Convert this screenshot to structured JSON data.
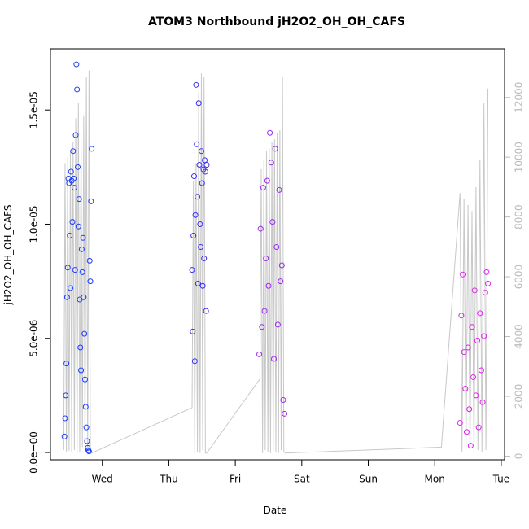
{
  "chart_data": {
    "type": "scatter",
    "title": "ATOM3 Northbound jH2O2_OH_OH_CAFS",
    "x_label": "Date",
    "y_label": "jH2O2_OH_OH_CAFS",
    "xlim": [
      -0.78,
      6.05
    ],
    "xticks": [
      {
        "value": 0,
        "label": "Wed"
      },
      {
        "value": 1,
        "label": "Thu"
      },
      {
        "value": 2,
        "label": "Fri"
      },
      {
        "value": 3,
        "label": "Sat"
      },
      {
        "value": 4,
        "label": "Sun"
      },
      {
        "value": 5,
        "label": "Mon"
      },
      {
        "value": 6,
        "label": "Tue"
      }
    ],
    "ylim": [
      -3.2e-07,
      1.768e-05
    ],
    "yticks": [
      {
        "value": 0,
        "label": "0.0e+00"
      },
      {
        "value": 5e-06,
        "label": "5.0e-06"
      },
      {
        "value": 1e-05,
        "label": "1.0e-05"
      },
      {
        "value": 1.5e-05,
        "label": "1.5e-05"
      }
    ],
    "y2lim": [
      -124,
      13626
    ],
    "y2ticks": [
      0,
      2000,
      4000,
      6000,
      8000,
      10000,
      12000
    ],
    "series": [
      {
        "type": "scatter",
        "color": "#1a3cff",
        "x": [
          -0.57,
          -0.56,
          -0.55,
          -0.54,
          -0.53,
          -0.52,
          -0.51,
          -0.5,
          -0.49,
          -0.48,
          -0.47,
          -0.46,
          -0.45,
          -0.44,
          -0.43,
          -0.42,
          -0.41,
          -0.4,
          -0.39,
          -0.38,
          -0.37,
          -0.36,
          -0.35,
          -0.34,
          -0.33,
          -0.32,
          -0.31,
          -0.3,
          -0.29,
          -0.28,
          -0.27,
          -0.26,
          -0.25,
          -0.24,
          -0.23,
          -0.22,
          -0.21,
          -0.2,
          -0.19,
          -0.18,
          -0.17,
          -0.16
        ],
        "values": [
          7e-07,
          1.5e-06,
          2.5e-06,
          3.9e-06,
          6.8e-06,
          8.1e-06,
          1.2e-05,
          1.18e-05,
          9.5e-06,
          7.2e-06,
          1.23e-05,
          1.19e-05,
          1.01e-05,
          1.32e-05,
          1.2e-05,
          1.16e-05,
          8e-06,
          1.39e-05,
          1.7e-05,
          1.59e-05,
          1.25e-05,
          9.9e-06,
          1.11e-05,
          6.7e-06,
          4.6e-06,
          3.6e-06,
          8.9e-06,
          7.9e-06,
          9.4e-06,
          6.8e-06,
          5.2e-06,
          3.2e-06,
          2e-06,
          1.1e-06,
          5e-07,
          2e-07,
          1e-07,
          5e-08,
          8.4e-06,
          7.5e-06,
          1.1e-05,
          1.33e-05
        ]
      },
      {
        "type": "scatter",
        "color": "#3a2ef5",
        "x": [
          1.35,
          1.36,
          1.37,
          1.38,
          1.39,
          1.4,
          1.41,
          1.42,
          1.43,
          1.44,
          1.45,
          1.46,
          1.47,
          1.48,
          1.49,
          1.5,
          1.51,
          1.52,
          1.53,
          1.54,
          1.55,
          1.56,
          1.57
        ],
        "values": [
          8e-06,
          5.3e-06,
          9.5e-06,
          1.21e-05,
          4e-06,
          1.04e-05,
          1.61e-05,
          1.35e-05,
          1.12e-05,
          7.4e-06,
          1.53e-05,
          1.26e-05,
          1e-05,
          9e-06,
          1.32e-05,
          1.18e-05,
          7.3e-06,
          1.24e-05,
          8.5e-06,
          1.28e-05,
          1.23e-05,
          6.2e-06,
          1.26e-05
        ]
      },
      {
        "type": "scatter",
        "color": "#9a2af0",
        "x": [
          2.36,
          2.38,
          2.4,
          2.42,
          2.44,
          2.46,
          2.48,
          2.5,
          2.52,
          2.54,
          2.56,
          2.58,
          2.6,
          2.62,
          2.64,
          2.66,
          2.68,
          2.7,
          2.72,
          2.74
        ],
        "values": [
          4.3e-06,
          9.8e-06,
          5.5e-06,
          1.16e-05,
          6.2e-06,
          8.5e-06,
          1.19e-05,
          7.3e-06,
          1.4e-05,
          1.27e-05,
          1.01e-05,
          4.1e-06,
          1.33e-05,
          9e-06,
          5.6e-06,
          1.15e-05,
          7.5e-06,
          8.2e-06,
          2.3e-06,
          1.7e-06
        ]
      },
      {
        "type": "scatter",
        "color": "#e020f0",
        "x": [
          5.38,
          5.4,
          5.42,
          5.44,
          5.46,
          5.48,
          5.5,
          5.52,
          5.54,
          5.56,
          5.58,
          5.6,
          5.62,
          5.64,
          5.66,
          5.68,
          5.7,
          5.72,
          5.74,
          5.76,
          5.78,
          5.8
        ],
        "values": [
          1.3e-06,
          6e-06,
          7.8e-06,
          4.4e-06,
          2.8e-06,
          9e-07,
          4.6e-06,
          1.9e-06,
          3e-07,
          5.5e-06,
          3.3e-06,
          7.1e-06,
          2.5e-06,
          4.9e-06,
          1.1e-06,
          6.1e-06,
          3.6e-06,
          2.2e-06,
          5.1e-06,
          7e-06,
          7.9e-06,
          7.4e-06
        ]
      },
      {
        "type": "line",
        "axis": "y2",
        "color": "#c8c8c8",
        "x": [
          -0.58,
          -0.56,
          -0.54,
          -0.52,
          -0.5,
          -0.48,
          -0.46,
          -0.44,
          -0.42,
          -0.4,
          -0.38,
          -0.36,
          -0.34,
          -0.32,
          -0.3,
          -0.28,
          -0.26,
          -0.24,
          -0.22,
          -0.2,
          -0.18,
          -0.16,
          1.35,
          1.37,
          1.39,
          1.41,
          1.43,
          1.45,
          1.47,
          1.49,
          1.51,
          1.53,
          1.55,
          1.57,
          2.37,
          2.39,
          2.41,
          2.43,
          2.45,
          2.47,
          2.49,
          2.51,
          2.53,
          2.55,
          2.57,
          2.59,
          2.61,
          2.63,
          2.65,
          2.67,
          2.69,
          2.71,
          2.73,
          2.75,
          5.1,
          5.38,
          5.41,
          5.44,
          5.47,
          5.5,
          5.53,
          5.56,
          5.59,
          5.62,
          5.65,
          5.68,
          5.71,
          5.74,
          5.77,
          5.8
        ],
        "values": [
          200,
          9800,
          150,
          10000,
          180,
          10200,
          120,
          10500,
          200,
          11300,
          150,
          11800,
          120,
          10800,
          300,
          11400,
          100,
          12700,
          150,
          12900,
          200,
          100,
          1620,
          9200,
          100,
          9800,
          150,
          12200,
          100,
          12800,
          200,
          12700,
          100,
          100,
          2580,
          9600,
          100,
          9900,
          200,
          10200,
          150,
          10300,
          100,
          10500,
          200,
          10600,
          150,
          10800,
          100,
          10900,
          200,
          12700,
          150,
          100,
          300,
          8800,
          150,
          8600,
          200,
          8400,
          150,
          8200,
          100,
          9000,
          200,
          9900,
          150,
          11800,
          200,
          12300
        ]
      }
    ]
  }
}
